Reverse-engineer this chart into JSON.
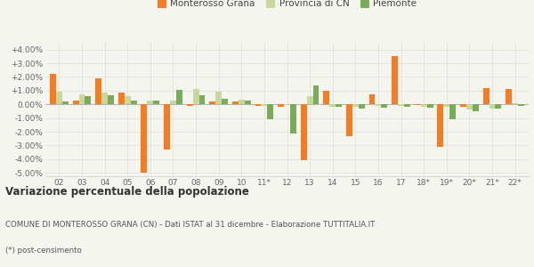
{
  "years": [
    "02",
    "03",
    "04",
    "05",
    "06",
    "07",
    "08",
    "09",
    "10",
    "11*",
    "12",
    "13",
    "14",
    "15",
    "16",
    "17",
    "18*",
    "19*",
    "20*",
    "21*",
    "22*"
  ],
  "monterosso": [
    2.25,
    0.3,
    1.9,
    0.85,
    -5.0,
    -3.3,
    -0.1,
    0.2,
    0.2,
    -0.1,
    -0.15,
    -4.1,
    1.0,
    -2.3,
    0.75,
    3.5,
    -0.05,
    -3.1,
    -0.2,
    1.2,
    1.1
  ],
  "provincia": [
    0.95,
    0.7,
    0.85,
    0.6,
    0.25,
    0.3,
    1.1,
    0.95,
    0.35,
    -0.1,
    -0.05,
    0.6,
    -0.15,
    -0.15,
    -0.1,
    -0.1,
    -0.15,
    -0.2,
    -0.35,
    -0.3,
    0.1
  ],
  "piemonte": [
    0.2,
    0.6,
    0.65,
    0.3,
    0.25,
    1.05,
    0.65,
    0.4,
    0.25,
    -1.1,
    -2.1,
    1.4,
    -0.2,
    -0.3,
    -0.25,
    -0.2,
    -0.25,
    -1.1,
    -0.5,
    -0.3,
    -0.1
  ],
  "color_monterosso": "#f97b20",
  "color_provincia": "#c8d89a",
  "color_piemonte": "#7aab5a",
  "title_bold": "Variazione percentuale della popolazione",
  "subtitle": "COMUNE DI MONTEROSSO GRANA (CN) - Dati ISTAT al 31 dicembre - Elaborazione TUTTITALIA.IT",
  "footnote": "(*) post-censimento",
  "bg_color": "#f5f5ef",
  "ylim": [
    -5.25,
    4.5
  ],
  "yticks": [
    -5.0,
    -4.0,
    -3.0,
    -2.0,
    -1.0,
    0.0,
    1.0,
    2.0,
    3.0,
    4.0
  ],
  "legend_labels": [
    "Monterosso Grana",
    "Provincia di CN",
    "Piemonte"
  ]
}
